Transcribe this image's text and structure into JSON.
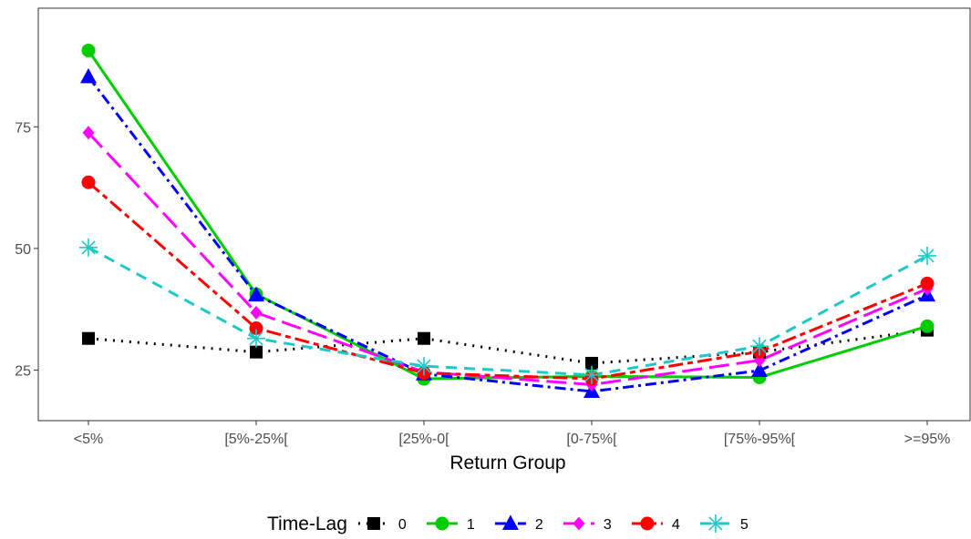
{
  "chart_data": {
    "type": "line",
    "title": "",
    "xlabel": "Return Group",
    "ylabel": "",
    "categories": [
      "<5%",
      "[5%-25%[",
      "[25%-0[",
      "[0-75%[",
      "[75%-95%[",
      ">=95%"
    ],
    "yticks": [
      25,
      50,
      75
    ],
    "ylim": [
      14.6,
      99.4
    ],
    "grid": false,
    "legend": {
      "title": "Time-Lag",
      "position": "bottom"
    },
    "series": [
      {
        "name": "0",
        "color": "#000000",
        "dash": "dotted",
        "shape": "square",
        "values": [
          31.5,
          28.7,
          31.5,
          26.4,
          28.7,
          33.2
        ]
      },
      {
        "name": "1",
        "color": "#00CD00",
        "dash": "solid",
        "shape": "circle",
        "values": [
          90.7,
          40.6,
          23.2,
          23.7,
          23.5,
          34.0
        ]
      },
      {
        "name": "2",
        "color": "#0000FF",
        "dash": "dashdot",
        "shape": "triangle",
        "values": [
          85.3,
          40.4,
          24.2,
          20.6,
          24.9,
          40.4
        ]
      },
      {
        "name": "3",
        "color": "#FF00FF",
        "dash": "longdash",
        "shape": "diamond",
        "values": [
          73.8,
          36.8,
          24.6,
          22.0,
          27.0,
          41.7
        ]
      },
      {
        "name": "4",
        "color": "#FF0000",
        "dash": "twodash",
        "shape": "circle",
        "values": [
          63.6,
          33.6,
          24.4,
          23.2,
          28.8,
          42.8
        ]
      },
      {
        "name": "5",
        "color": "#1EC8C8",
        "dash": "dashed",
        "shape": "asterisk",
        "values": [
          50.2,
          31.5,
          25.8,
          24.0,
          29.9,
          48.5
        ]
      }
    ]
  }
}
